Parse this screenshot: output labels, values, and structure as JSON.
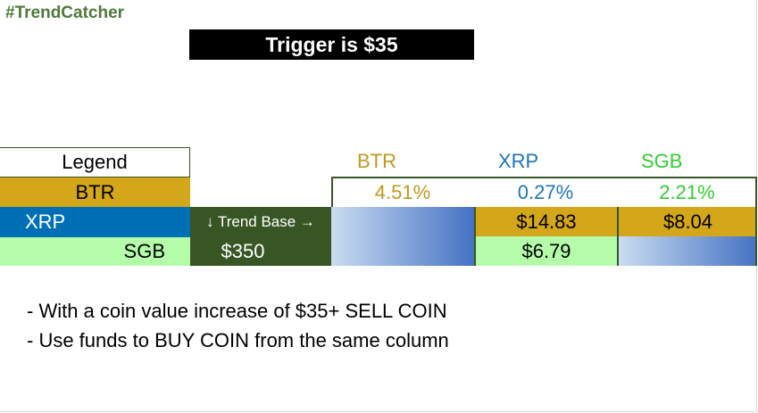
{
  "header": {
    "hashtag": "#TrendCatcher",
    "trigger_text": "Trigger is $35"
  },
  "legend": {
    "title": "Legend",
    "items": [
      {
        "label": "BTR",
        "color": "#d4a619"
      },
      {
        "label": "XRP",
        "color": "#0070b6"
      },
      {
        "label": "SGB",
        "color": "#b4fbaa"
      }
    ]
  },
  "trend_base": {
    "label": "↓ Trend Base →",
    "value": "$350",
    "color": "#375623"
  },
  "columns": [
    {
      "name": "BTR",
      "percent": "4.51%",
      "color": "#c09a1e"
    },
    {
      "name": "XRP",
      "percent": "0.27%",
      "color": "#1e74b8"
    },
    {
      "name": "SGB",
      "percent": "2.21%",
      "color": "#33cc33"
    }
  ],
  "cells": {
    "xrp_row1": "$14.83",
    "xrp_row2": "$6.79",
    "sgb_row1": "$8.04"
  },
  "notes": [
    "- With a coin value increase of $35+ SELL COIN",
    "- Use funds to BUY COIN from the same column"
  ]
}
